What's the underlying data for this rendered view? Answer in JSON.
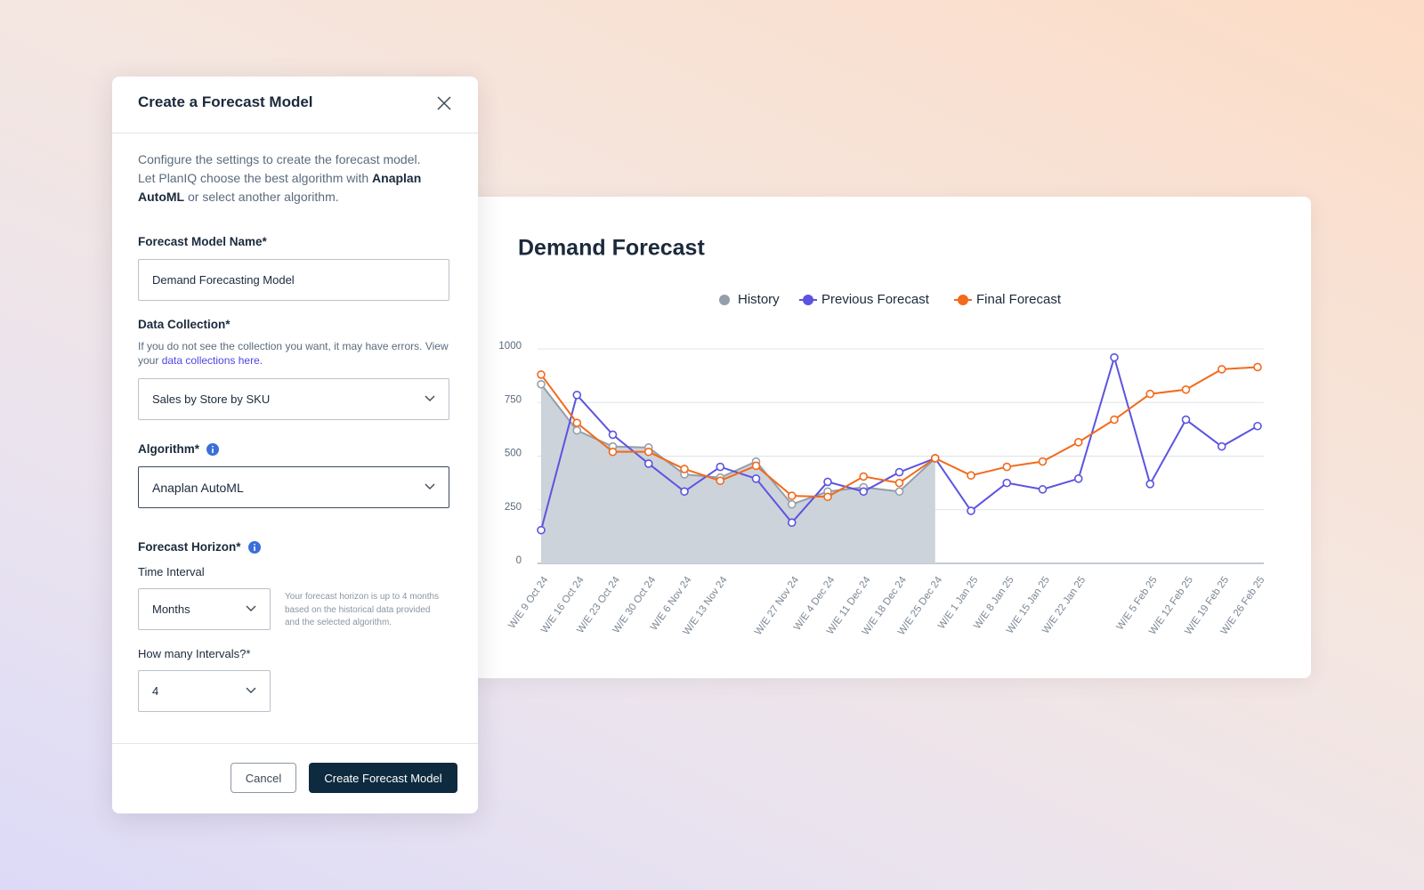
{
  "modal": {
    "title": "Create a Forecast Model",
    "description": {
      "start": "Configure the settings to create the forecast model. Let PlanIQ choose the best algorithm with ",
      "bold": "Anaplan AutoML",
      "end": " or select another algorithm."
    },
    "name_field": {
      "label": "Forecast Model Name*",
      "value": "Demand Forecasting Model"
    },
    "collection_field": {
      "label": "Data Collection*",
      "help": "If you do not see the collection you want, it may have errors. View your ",
      "link": "data collections here.",
      "value": "Sales by Store by SKU"
    },
    "algorithm_field": {
      "label": "Algorithm*",
      "value": "Anaplan AutoML"
    },
    "horizon": {
      "label": "Forecast Horizon*",
      "interval_label": "Time Interval",
      "interval_value": "Months",
      "hint": "Your forecast horizon is up to 4 months based on the historical data provided and the selected algorithm.",
      "count_label": "How many Intervals?*",
      "count_value": "4"
    },
    "buttons": {
      "cancel": "Cancel",
      "create": "Create Forecast Model"
    }
  },
  "chart_data": {
    "type": "line",
    "title": "Demand Forecast",
    "categories": [
      "W/E 9 Oct 24",
      "W/E 16 Oct 24",
      "W/E 23 Oct 24",
      "W/E 30 Oct 24",
      "W/E 6 Nov 24",
      "W/E 13 Nov 24",
      null,
      "W/E 27 Nov 24",
      "W/E 4 Dec 24",
      "W/E 11 Dec 24",
      "W/E 18 Dec 24",
      "W/E 25 Dec 24",
      "W/E 1 Jan 25",
      "W/E 8 Jan 25",
      "W/E 15 Jan 25",
      "W/E 22 Jan 25",
      null,
      "W/E 5 Feb 25",
      "W/E 12 Feb 25",
      "W/E 19 Feb 25",
      "W/E 26 Feb 25"
    ],
    "series": [
      {
        "name": "History",
        "color": "#949fab",
        "area_color": "#cdd3da",
        "values": [
          835,
          620,
          545,
          540,
          415,
          400,
          475,
          275,
          335,
          355,
          335,
          490,
          null,
          null,
          null,
          null,
          null,
          null,
          null,
          null,
          null
        ]
      },
      {
        "name": "Previous Forecast",
        "color": "#5b54e0",
        "values": [
          155,
          785,
          600,
          465,
          335,
          450,
          395,
          190,
          380,
          335,
          425,
          490,
          245,
          375,
          345,
          395,
          960,
          370,
          670,
          545,
          640
        ]
      },
      {
        "name": "Final Forecast",
        "color": "#f26a1b",
        "values": [
          880,
          655,
          520,
          520,
          440,
          385,
          455,
          315,
          310,
          405,
          375,
          490,
          410,
          450,
          475,
          565,
          670,
          790,
          810,
          905,
          915
        ]
      }
    ],
    "ylim": [
      0,
      1000
    ],
    "yticks": [
      0,
      250,
      500,
      750,
      1000
    ],
    "grid": true
  }
}
